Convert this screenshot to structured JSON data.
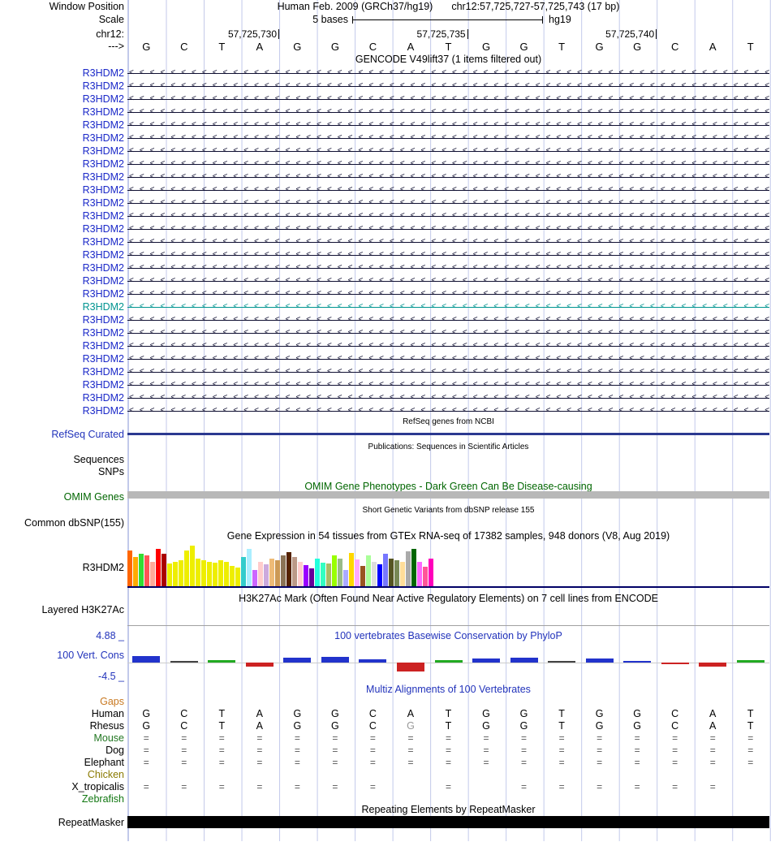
{
  "header": {
    "window_position_label": "Window Position",
    "assembly": "Human Feb. 2009 (GRCh37/hg19)",
    "range": "chr12:57,725,727-57,725,743 (17 bp)",
    "scale_label": "Scale",
    "scale_value": "5 bases",
    "genome": "hg19",
    "chrom_label": "chr12:",
    "strand_label": "--->",
    "coordinates": [
      "57,725,730",
      "57,725,735",
      "57,725,740"
    ],
    "bases": [
      "G",
      "C",
      "T",
      "A",
      "G",
      "G",
      "C",
      "A",
      "T",
      "G",
      "G",
      "T",
      "G",
      "G",
      "C",
      "A",
      "T"
    ]
  },
  "tracks": {
    "gencode": {
      "title": "GENCODE V49lift37 (1 items filtered out)",
      "item_label": "R3HDM2",
      "row_count": 27,
      "highlight_index": 18,
      "item_color": "#111133",
      "label_color": "#1a28c8",
      "highlight_color": "#009490"
    },
    "refseq": {
      "title": "RefSeq genes from NCBI",
      "label": "RefSeq Curated",
      "item_color": "#2b3990"
    },
    "publications": {
      "title": "Publications: Sequences in Scientific Articles",
      "row_labels": [
        "Sequences",
        "SNPs"
      ]
    },
    "omim": {
      "title": "OMIM Gene Phenotypes - Dark Green Can Be Disease-causing",
      "label": "OMIM Genes",
      "title_color": "#006600",
      "bar_color": "#b8b8b8"
    },
    "dbsnp": {
      "title": "Short Genetic Variants from dbSNP release 155",
      "label": "Common dbSNP(155)"
    },
    "gtex": {
      "title": "Gene Expression in 54 tissues from GTEx RNA-seq of 17382 samples, 948 donors (V8, Aug 2019)",
      "label": "R3HDM2",
      "baseline_color": "#000066"
    },
    "h3k27ac": {
      "title": "H3K27Ac Mark (Often Found Near Active Regulatory Elements) on 7 cell lines from ENCODE",
      "label": "Layered H3K27Ac"
    },
    "phylop": {
      "title": "100 vertebrates Basewise Conservation by PhyloP",
      "label": "100 Vert. Cons",
      "max_label": "4.88 _",
      "min_label": "-4.5 _",
      "title_color": "#2233bb"
    },
    "multiz": {
      "title": "Multiz Alignments of 100 Vertebrates",
      "title_color": "#2233bb",
      "species": [
        {
          "name": "Gaps",
          "color": "#c87820",
          "type": "blank"
        },
        {
          "name": "Human",
          "color": "#000000",
          "type": "letters",
          "letters": [
            "G",
            "C",
            "T",
            "A",
            "G",
            "G",
            "C",
            "A",
            "T",
            "G",
            "G",
            "T",
            "G",
            "G",
            "C",
            "A",
            "T"
          ]
        },
        {
          "name": "Rhesus",
          "color": "#000000",
          "type": "letters",
          "letters": [
            "G",
            "C",
            "T",
            "A",
            "G",
            "G",
            "C",
            "G",
            "T",
            "G",
            "G",
            "T",
            "G",
            "G",
            "C",
            "A",
            "T"
          ],
          "dim": [
            7
          ]
        },
        {
          "name": "Mouse",
          "color": "#227722",
          "type": "marks",
          "marks": [
            1,
            1,
            1,
            1,
            1,
            1,
            1,
            1,
            1,
            1,
            1,
            1,
            1,
            1,
            1,
            1,
            1
          ]
        },
        {
          "name": "Dog",
          "color": "#000000",
          "type": "marks",
          "marks": [
            1,
            1,
            1,
            1,
            1,
            1,
            1,
            1,
            1,
            1,
            1,
            1,
            1,
            1,
            1,
            1,
            1
          ]
        },
        {
          "name": "Elephant",
          "color": "#000000",
          "type": "marks",
          "marks": [
            1,
            1,
            1,
            1,
            1,
            1,
            1,
            1,
            1,
            1,
            1,
            1,
            1,
            1,
            1,
            1,
            1
          ]
        },
        {
          "name": "Chicken",
          "color": "#8a7a00",
          "type": "blank"
        },
        {
          "name": "X_tropicalis",
          "color": "#000000",
          "type": "marks",
          "marks": [
            1,
            1,
            1,
            1,
            1,
            1,
            1,
            0,
            1,
            0,
            1,
            1,
            1,
            1,
            1,
            1,
            0
          ]
        },
        {
          "name": "Zebrafish",
          "color": "#117711",
          "type": "blank"
        }
      ],
      "gap_mark": "="
    },
    "repeatmasker": {
      "title": "Repeating Elements by RepeatMasker",
      "label": "RepeatMasker",
      "bar_color": "#000000"
    }
  },
  "chart_data": [
    {
      "type": "bar",
      "title": "Gene Expression in 54 tissues from GTEx RNA-seq of 17382 samples, 948 donors (V8, Aug 2019)",
      "gene": "R3HDM2",
      "note": "bar heights in pixels of a 50px-tall track; one bar per GTEx tissue, colored with GTEx tissue palette",
      "values": [
        44,
        36,
        40,
        38,
        30,
        46,
        40,
        28,
        30,
        32,
        44,
        50,
        34,
        32,
        30,
        29,
        32,
        30,
        25,
        23,
        36,
        46,
        20,
        30,
        27,
        34,
        32,
        38,
        42,
        36,
        30,
        26,
        22,
        34,
        29,
        28,
        38,
        34,
        20,
        41,
        33,
        25,
        38,
        30,
        27,
        40,
        34,
        32,
        30,
        43,
        46,
        30,
        24,
        34
      ],
      "colors": [
        "#FF6600",
        "#FFAA00",
        "#33DD33",
        "#FF5555",
        "#FFAA99",
        "#FF0000",
        "#AA0000",
        "#EEEE00",
        "#EEEE00",
        "#EEEE00",
        "#EEEE00",
        "#EEEE00",
        "#EEEE00",
        "#EEEE00",
        "#EEEE00",
        "#EEEE00",
        "#EEEE00",
        "#EEEE00",
        "#EEEE00",
        "#EEEE00",
        "#33CCCC",
        "#AAEEFF",
        "#CC66FF",
        "#FFCCCC",
        "#CCAADD",
        "#EEBB77",
        "#CC9955",
        "#8B7355",
        "#552200",
        "#BB9988",
        "#FFCCCC",
        "#9900FF",
        "#660099",
        "#22FFDD",
        "#33FFC2",
        "#AABB66",
        "#99FF00",
        "#99BB88",
        "#AAAAFF",
        "#FFD700",
        "#FFAAFF",
        "#995522",
        "#AAFF99",
        "#DDDDDD",
        "#0000FF",
        "#7777FF",
        "#555522",
        "#778855",
        "#FFDD99",
        "#AAAAAA",
        "#006600",
        "#FF66FF",
        "#FF5599",
        "#FF00BB"
      ]
    },
    {
      "type": "bar",
      "title": "100 vertebrates Basewise Conservation by PhyloP",
      "x_bases": [
        "G",
        "C",
        "T",
        "A",
        "G",
        "G",
        "C",
        "A",
        "T",
        "G",
        "G",
        "T",
        "G",
        "G",
        "C",
        "A",
        "T"
      ],
      "values": [
        1.6,
        0.3,
        0.6,
        -0.9,
        1.2,
        1.3,
        0.8,
        -2.2,
        0.5,
        1.0,
        1.1,
        0.4,
        0.9,
        0.4,
        -0.4,
        -1.0,
        0.6
      ],
      "colors": [
        "#2233cc",
        "#444444",
        "#22aa22",
        "#cc2222",
        "#2233cc",
        "#2233cc",
        "#2233cc",
        "#cc2222",
        "#22aa22",
        "#2233cc",
        "#2233cc",
        "#444444",
        "#2233cc",
        "#2233cc",
        "#cc2222",
        "#cc2222",
        "#22aa22"
      ],
      "ylim": [
        -4.5,
        4.88
      ]
    }
  ]
}
